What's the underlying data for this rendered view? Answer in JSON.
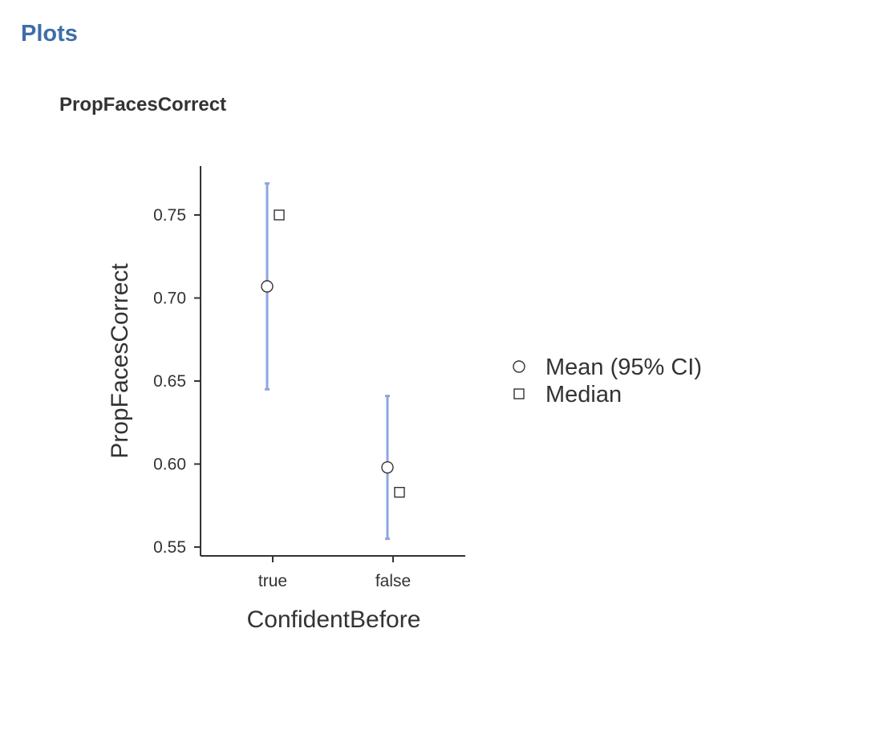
{
  "section": {
    "heading": "Plots"
  },
  "chart_data": {
    "type": "scatter",
    "title": "PropFacesCorrect",
    "xlabel": "ConfidentBefore",
    "ylabel": "PropFacesCorrect",
    "categories": [
      "true",
      "false"
    ],
    "ylim": [
      0.545,
      0.78
    ],
    "yticks": [
      0.55,
      0.6,
      0.65,
      0.7,
      0.75
    ],
    "ytick_labels": [
      "0.55",
      "0.60",
      "0.65",
      "0.70",
      "0.75"
    ],
    "grid": false,
    "legend_position": "right",
    "series": [
      {
        "name": "Mean (95% CI)",
        "marker": "circle",
        "values": [
          0.707,
          0.598
        ],
        "ci_lower": [
          0.645,
          0.555
        ],
        "ci_upper": [
          0.769,
          0.641
        ]
      },
      {
        "name": "Median",
        "marker": "square",
        "values": [
          0.75,
          0.583
        ]
      }
    ],
    "colors": {
      "error_bar": "#8ea6e0",
      "axis": "#333333",
      "marker_stroke": "#333333",
      "marker_fill": "#ffffff"
    }
  }
}
